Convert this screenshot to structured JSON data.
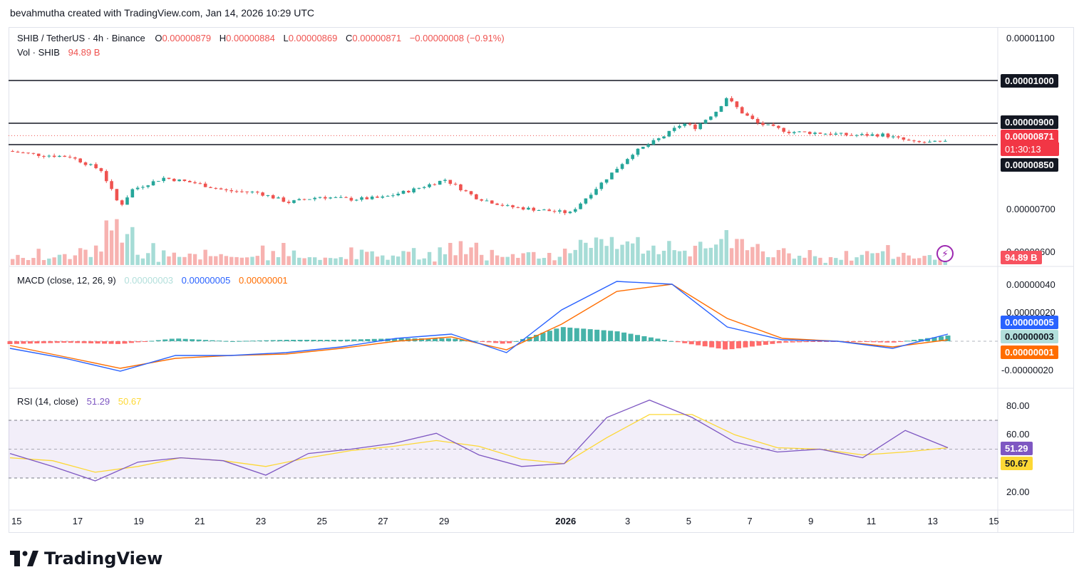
{
  "header": {
    "text": "bevahmutha created with TradingView.com, Jan 14, 2026 10:29 UTC"
  },
  "legend": {
    "symbol": "SHIB / TetherUS · 4h · Binance",
    "o_label": "O",
    "o_value": "0.00000879",
    "h_label": "H",
    "h_value": "0.00000884",
    "l_label": "L",
    "l_value": "0.00000869",
    "c_label": "C",
    "c_value": "0.00000871",
    "change": "−0.00000008 (−0.91%)",
    "vol_label": "Vol · SHIB",
    "vol_value": "94.89 B"
  },
  "macd_legend": {
    "label": "MACD (close, 12, 26, 9)",
    "hist": "0.00000003",
    "macd": "0.00000005",
    "signal": "0.00000001"
  },
  "rsi_legend": {
    "label": "RSI (14, close)",
    "rsi": "51.29",
    "ma": "50.67"
  },
  "price_axis": [
    "0.00001100",
    "0.00000700",
    "0.00000600"
  ],
  "price_badges": {
    "level_1000": "0.00001000",
    "level_900": "0.00000900",
    "current": "0.00000871",
    "countdown": "01:30:13",
    "level_850": "0.00000850",
    "volume": "94.89 B"
  },
  "macd_axis": [
    "0.00000040",
    "0.00000020",
    "-0.00000020"
  ],
  "macd_badges": {
    "macd": "0.00000005",
    "hist": "0.00000003",
    "signal": "0.00000001"
  },
  "rsi_axis": [
    "80.00",
    "60.00",
    "20.00"
  ],
  "rsi_badges": {
    "rsi": "51.29",
    "ma": "50.67"
  },
  "time_axis": [
    "15",
    "17",
    "19",
    "21",
    "23",
    "25",
    "27",
    "29",
    "2026",
    "3",
    "5",
    "7",
    "9",
    "11",
    "13",
    "15"
  ],
  "brand": {
    "name": "TradingView"
  },
  "colors": {
    "up": "#26a69a",
    "down": "#ef5350",
    "macd": "#2962ff",
    "signal": "#ff6d00",
    "rsi": "#7e57c2",
    "rsi_ma": "#fdd835"
  },
  "chart_data": [
    {
      "type": "candlestick",
      "title": "SHIB / TetherUS · 4h · Binance",
      "x_range": [
        "Dec 15 2025",
        "Jan 14 2026"
      ],
      "horizontal_levels": [
        1e-05,
        9e-06,
        8.5e-06
      ],
      "close_path": [
        {
          "date": "Dec 15",
          "close": 8.35e-06
        },
        {
          "date": "Dec 16",
          "close": 8.26e-06
        },
        {
          "date": "Dec 17",
          "close": 8.22e-06
        },
        {
          "date": "Dec 18",
          "close": 7.9e-06
        },
        {
          "date": "Dec 18.6",
          "close": 7.05e-06
        },
        {
          "date": "Dec 19",
          "close": 7.45e-06
        },
        {
          "date": "Dec 20",
          "close": 7.72e-06
        },
        {
          "date": "Dec 21",
          "close": 7.6e-06
        },
        {
          "date": "Dec 22",
          "close": 7.42e-06
        },
        {
          "date": "Dec 23",
          "close": 7.38e-06
        },
        {
          "date": "Dec 24",
          "close": 7.15e-06
        },
        {
          "date": "Dec 25",
          "close": 7.28e-06
        },
        {
          "date": "Dec 26",
          "close": 7.22e-06
        },
        {
          "date": "Dec 27",
          "close": 7.26e-06
        },
        {
          "date": "Dec 28",
          "close": 7.45e-06
        },
        {
          "date": "Dec 29",
          "close": 7.68e-06
        },
        {
          "date": "Dec 30",
          "close": 7.26e-06
        },
        {
          "date": "Dec 31",
          "close": 7.05e-06
        },
        {
          "date": "Jan 1",
          "close": 6.9e-06
        },
        {
          "date": "Jan 2",
          "close": 7.6e-06
        },
        {
          "date": "Jan 3",
          "close": 8.3e-06
        },
        {
          "date": "Jan 4",
          "close": 8.7e-06
        },
        {
          "date": "Jan 4.6",
          "close": 9e-06
        },
        {
          "date": "Jan 5",
          "close": 8.9e-06
        },
        {
          "date": "Jan 5.7",
          "close": 9.3e-06
        },
        {
          "date": "Jan 6",
          "close": 9.6e-06
        },
        {
          "date": "Jan 6.5",
          "close": 9.25e-06
        },
        {
          "date": "Jan 7",
          "close": 9e-06
        },
        {
          "date": "Jan 8",
          "close": 8.8e-06
        },
        {
          "date": "Jan 9",
          "close": 8.77e-06
        },
        {
          "date": "Jan 10",
          "close": 8.72e-06
        },
        {
          "date": "Jan 11",
          "close": 8.73e-06
        },
        {
          "date": "Jan 12",
          "close": 8.55e-06
        },
        {
          "date": "Jan 13",
          "close": 8.55e-06
        },
        {
          "date": "Jan 13.8",
          "close": 8.9e-06
        },
        {
          "date": "Jan 14",
          "close": 8.71e-06
        }
      ],
      "volume_last": "94.89 B"
    },
    {
      "type": "line",
      "title": "MACD (close, 12, 26, 9)",
      "ylim": [
        -2.5e-07,
        4.5e-07
      ],
      "series": [
        {
          "name": "MACD",
          "values": [
            -5e-08,
            -1.2e-07,
            -2.1e-07,
            -1e-07,
            -1e-07,
            -8e-08,
            -4e-08,
            2e-08,
            5e-08,
            -8e-08,
            2.2e-07,
            4.2e-07,
            4e-07,
            1e-07,
            1e-08,
            0.0,
            -5e-08,
            5e-08
          ]
        },
        {
          "name": "Signal",
          "values": [
            -3e-08,
            -1.1e-07,
            -1.9e-07,
            -1.2e-07,
            -1e-07,
            -9e-08,
            -5e-08,
            0.0,
            3e-08,
            -6e-08,
            1.2e-07,
            3.5e-07,
            4e-07,
            1.6e-07,
            2e-08,
            0.0,
            -4e-08,
            1e-08
          ]
        }
      ]
    },
    {
      "type": "line",
      "title": "RSI (14, close)",
      "ylim": [
        10,
        90
      ],
      "bands": [
        30,
        70
      ],
      "series": [
        {
          "name": "RSI",
          "values": [
            47,
            38,
            28,
            41,
            44,
            42,
            32,
            47,
            50,
            54,
            61,
            46,
            38,
            40,
            72,
            84,
            72,
            55,
            48,
            50,
            44,
            63,
            51
          ]
        },
        {
          "name": "MA",
          "values": [
            44,
            42,
            34,
            38,
            44,
            42,
            38,
            44,
            49,
            52,
            56,
            52,
            43,
            40,
            58,
            74,
            74,
            60,
            51,
            50,
            46,
            48,
            51
          ]
        }
      ]
    }
  ]
}
